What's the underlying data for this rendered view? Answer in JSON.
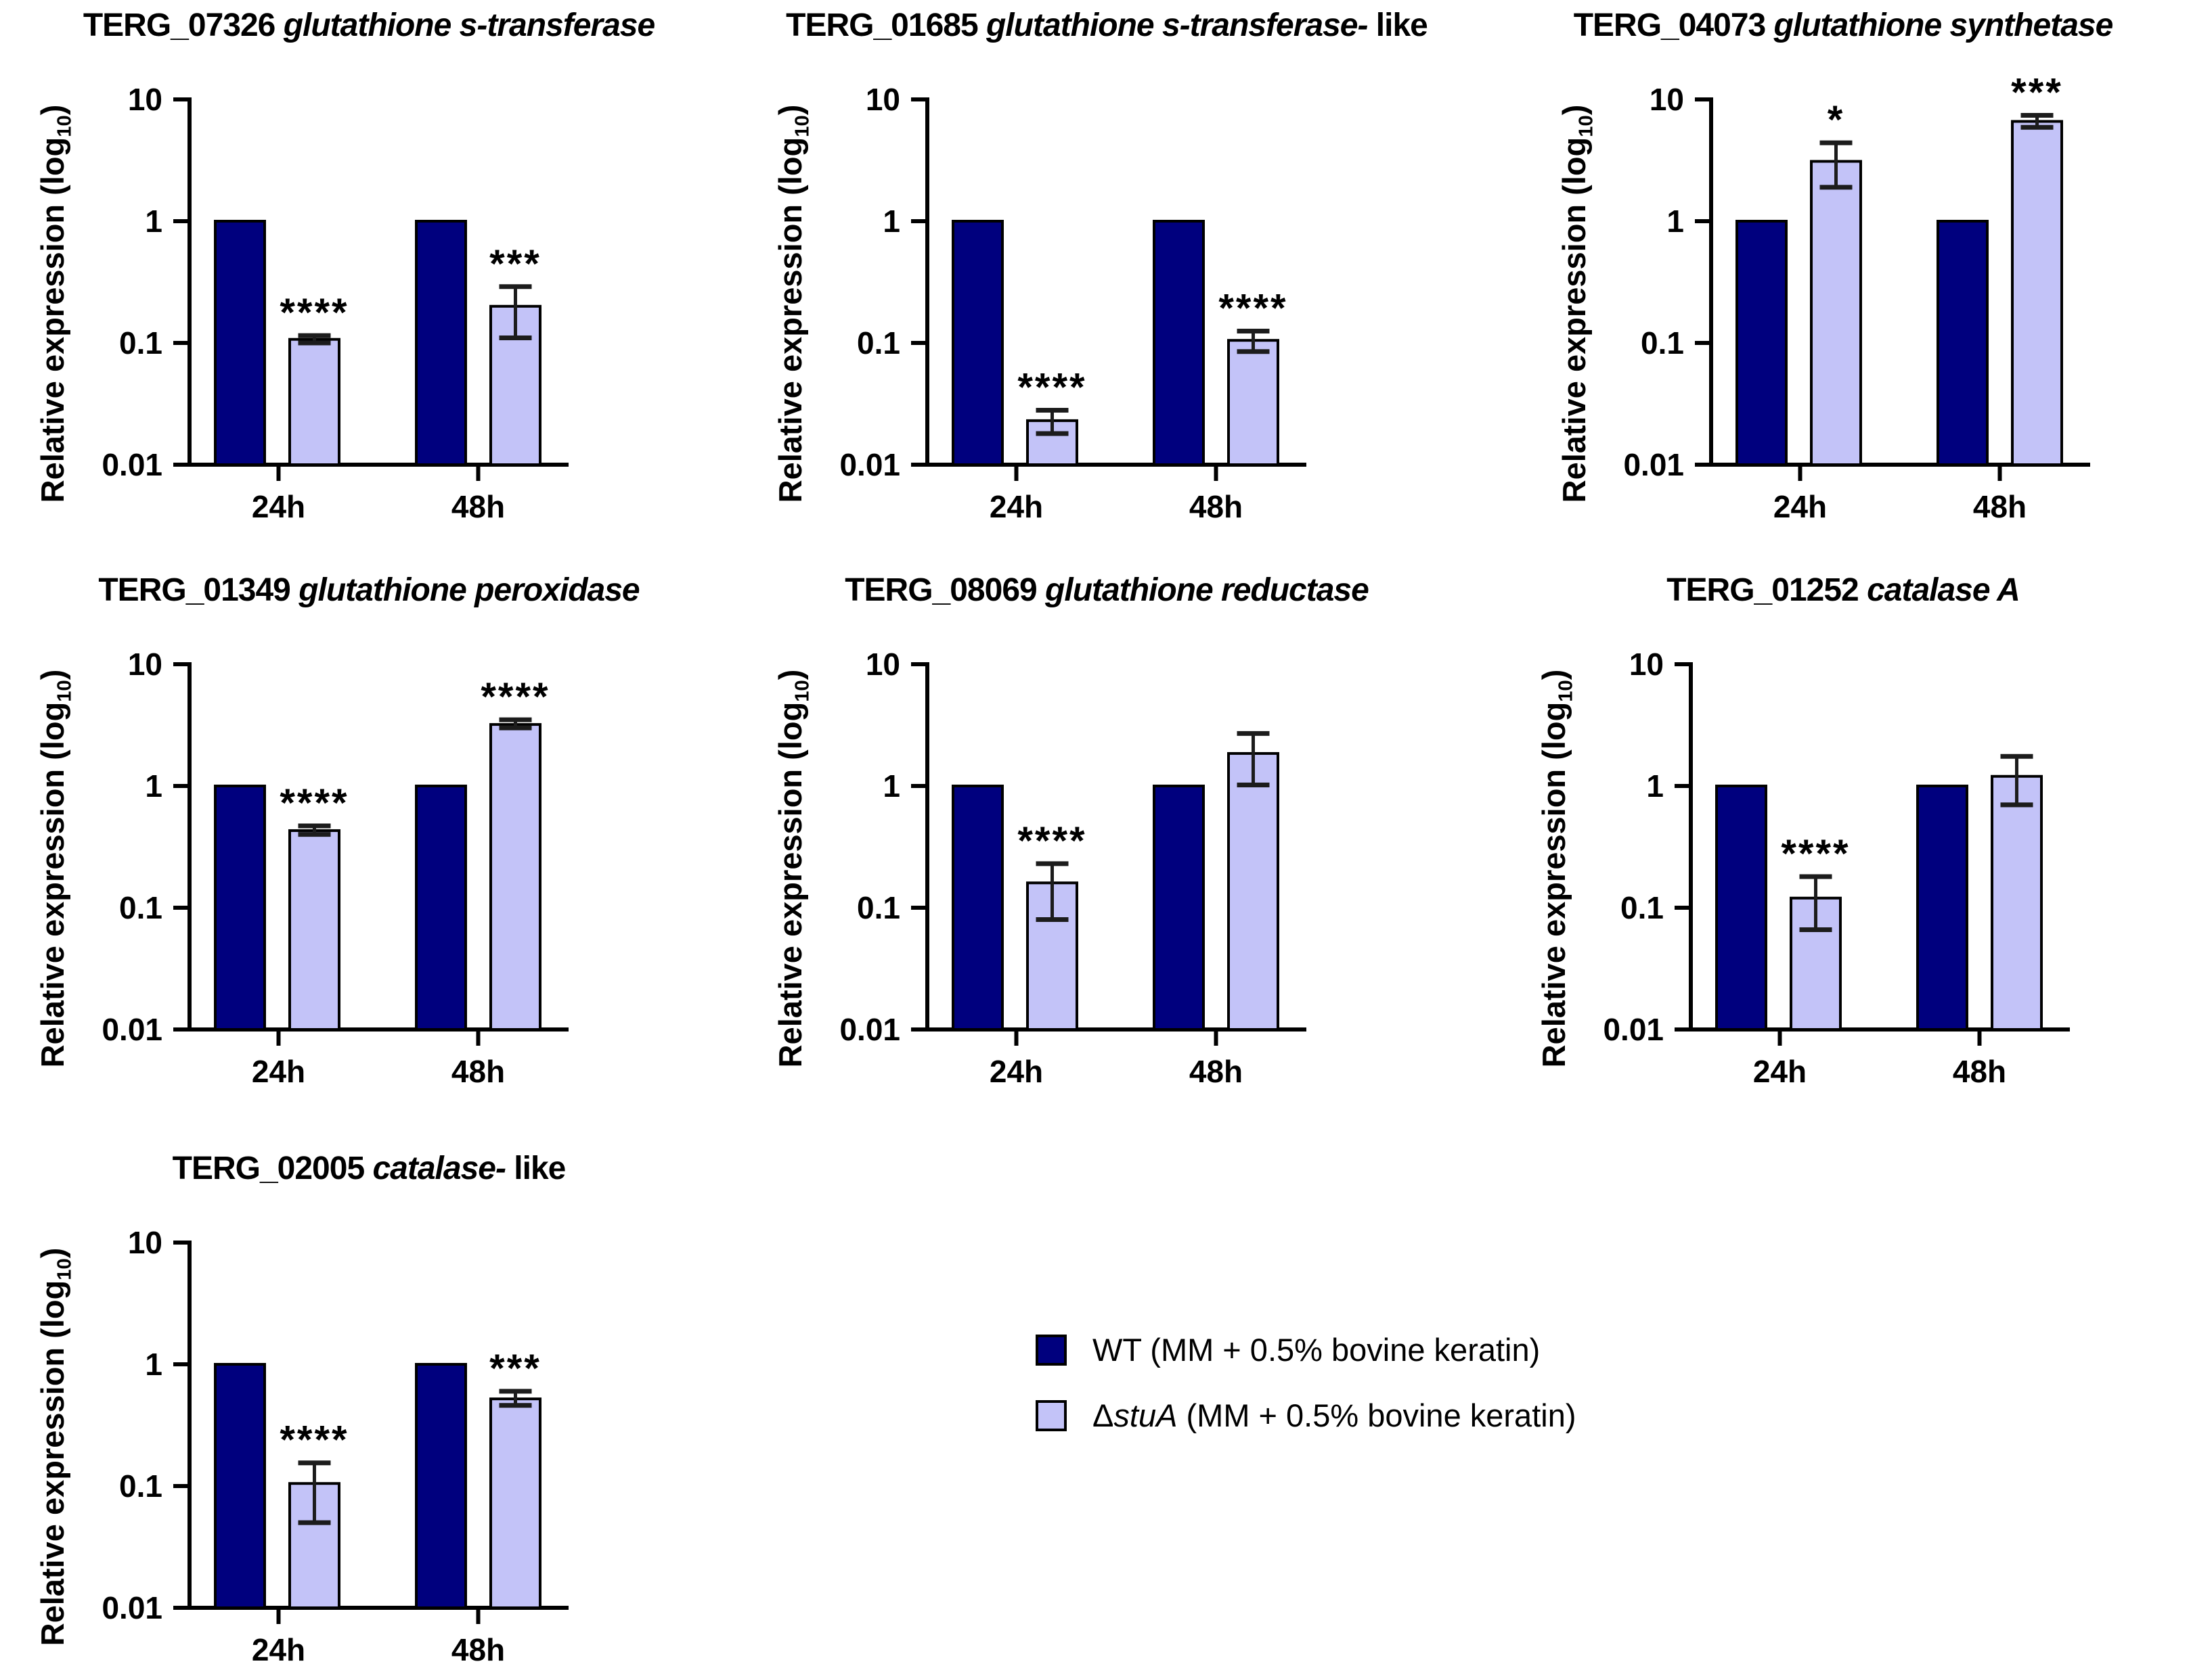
{
  "figure": {
    "description_colors": {
      "wt_bar": "#00007e",
      "stuA_bar": "#c3c3f8",
      "bar_outline": "#000000",
      "error_bar": "#1c1c1c"
    }
  },
  "axis": {
    "ylabel_open": "Relative expression (log",
    "ylabel_sub": "10",
    "ylabel_close": ")",
    "ytick_labels": [
      "10",
      "1",
      "0.1",
      "0.01"
    ],
    "xtick_labels": [
      "24h",
      "48h"
    ]
  },
  "legend": {
    "items": [
      {
        "prefix": "WT",
        "italic": "",
        "rest": " (MM + 0.5% bovine keratin)",
        "color": "#00007e"
      },
      {
        "prefix": "Δ",
        "italic": "stuA",
        "rest": " (MM + 0.5% bovine keratin)",
        "color": "#c3c3f8"
      }
    ]
  },
  "chart_data": [
    {
      "type": "bar",
      "log_scale": true,
      "ylim": [
        0.01,
        10
      ],
      "yticks": [
        10,
        1,
        0.1,
        0.01
      ],
      "title_id": "TERG_07326 ",
      "title_italic": "glutathione s-transferase",
      "title_suffix": "",
      "categories": [
        "24h",
        "48h"
      ],
      "series": [
        {
          "name": "WT (MM + 0.5% bovine keratin)",
          "values": [
            1,
            1
          ]
        },
        {
          "name": "ΔstuA (MM + 0.5% bovine keratin)",
          "values": [
            0.107,
            0.2
          ],
          "errors": [
            [
              0.1,
              0.115
            ],
            [
              0.11,
              0.29
            ]
          ],
          "significance": [
            "****",
            "***"
          ]
        }
      ]
    },
    {
      "type": "bar",
      "log_scale": true,
      "ylim": [
        0.01,
        10
      ],
      "yticks": [
        10,
        1,
        0.1,
        0.01
      ],
      "title_id": "TERG_01685 ",
      "title_italic": "glutathione s-transferase-",
      "title_suffix": " like",
      "categories": [
        "24h",
        "48h"
      ],
      "series": [
        {
          "name": "WT (MM + 0.5% bovine keratin)",
          "values": [
            1,
            1
          ]
        },
        {
          "name": "ΔstuA (MM + 0.5% bovine keratin)",
          "values": [
            0.023,
            0.105
          ],
          "errors": [
            [
              0.018,
              0.028
            ],
            [
              0.085,
              0.125
            ]
          ],
          "significance": [
            "****",
            "****"
          ]
        }
      ]
    },
    {
      "type": "bar",
      "log_scale": true,
      "ylim": [
        0.01,
        10
      ],
      "yticks": [
        10,
        1,
        0.1,
        0.01
      ],
      "title_id": "TERG_04073 ",
      "title_italic": "glutathione synthetase",
      "title_suffix": "",
      "categories": [
        "24h",
        "48h"
      ],
      "series": [
        {
          "name": "WT (MM + 0.5% bovine keratin)",
          "values": [
            1,
            1
          ]
        },
        {
          "name": "ΔstuA (MM + 0.5% bovine keratin)",
          "values": [
            3.1,
            6.6
          ],
          "errors": [
            [
              1.9,
              4.4
            ],
            [
              5.9,
              7.4
            ]
          ],
          "significance": [
            "*",
            "***"
          ]
        }
      ]
    },
    {
      "type": "bar",
      "log_scale": true,
      "ylim": [
        0.01,
        10
      ],
      "yticks": [
        10,
        1,
        0.1,
        0.01
      ],
      "title_id": "TERG_01349 ",
      "title_italic": "glutathione peroxidase",
      "title_suffix": "",
      "categories": [
        "24h",
        "48h"
      ],
      "series": [
        {
          "name": "WT (MM + 0.5% bovine keratin)",
          "values": [
            1,
            1
          ]
        },
        {
          "name": "ΔstuA (MM + 0.5% bovine keratin)",
          "values": [
            0.43,
            3.2
          ],
          "errors": [
            [
              0.4,
              0.47
            ],
            [
              3.0,
              3.5
            ]
          ],
          "significance": [
            "****",
            "****"
          ]
        }
      ]
    },
    {
      "type": "bar",
      "log_scale": true,
      "ylim": [
        0.01,
        10
      ],
      "yticks": [
        10,
        1,
        0.1,
        0.01
      ],
      "title_id": "TERG_08069 ",
      "title_italic": "glutathione reductase",
      "title_suffix": "",
      "categories": [
        "24h",
        "48h"
      ],
      "series": [
        {
          "name": "WT (MM + 0.5% bovine keratin)",
          "values": [
            1,
            1
          ]
        },
        {
          "name": "ΔstuA (MM + 0.5% bovine keratin)",
          "values": [
            0.16,
            1.85
          ],
          "errors": [
            [
              0.08,
              0.23
            ],
            [
              1.02,
              2.7
            ]
          ],
          "significance": [
            "****",
            ""
          ]
        }
      ]
    },
    {
      "type": "bar",
      "log_scale": true,
      "ylim": [
        0.01,
        10
      ],
      "yticks": [
        10,
        1,
        0.1,
        0.01
      ],
      "title_id": "TERG_01252 ",
      "title_italic": "catalase A",
      "title_suffix": "",
      "categories": [
        "24h",
        "48h"
      ],
      "series": [
        {
          "name": "WT (MM + 0.5% bovine keratin)",
          "values": [
            1,
            1
          ]
        },
        {
          "name": "ΔstuA (MM + 0.5% bovine keratin)",
          "values": [
            0.12,
            1.2
          ],
          "errors": [
            [
              0.066,
              0.18
            ],
            [
              0.7,
              1.75
            ]
          ],
          "significance": [
            "****",
            ""
          ]
        }
      ]
    },
    {
      "type": "bar",
      "log_scale": true,
      "ylim": [
        0.01,
        10
      ],
      "yticks": [
        10,
        1,
        0.1,
        0.01
      ],
      "title_id": "TERG_02005 ",
      "title_italic": "catalase-",
      "title_suffix": " like",
      "categories": [
        "24h",
        "48h"
      ],
      "series": [
        {
          "name": "WT (MM + 0.5% bovine keratin)",
          "values": [
            1,
            1
          ]
        },
        {
          "name": "ΔstuA (MM + 0.5% bovine keratin)",
          "values": [
            0.105,
            0.52
          ],
          "errors": [
            [
              0.05,
              0.155
            ],
            [
              0.46,
              0.6
            ]
          ],
          "significance": [
            "****",
            "***"
          ]
        }
      ]
    }
  ]
}
